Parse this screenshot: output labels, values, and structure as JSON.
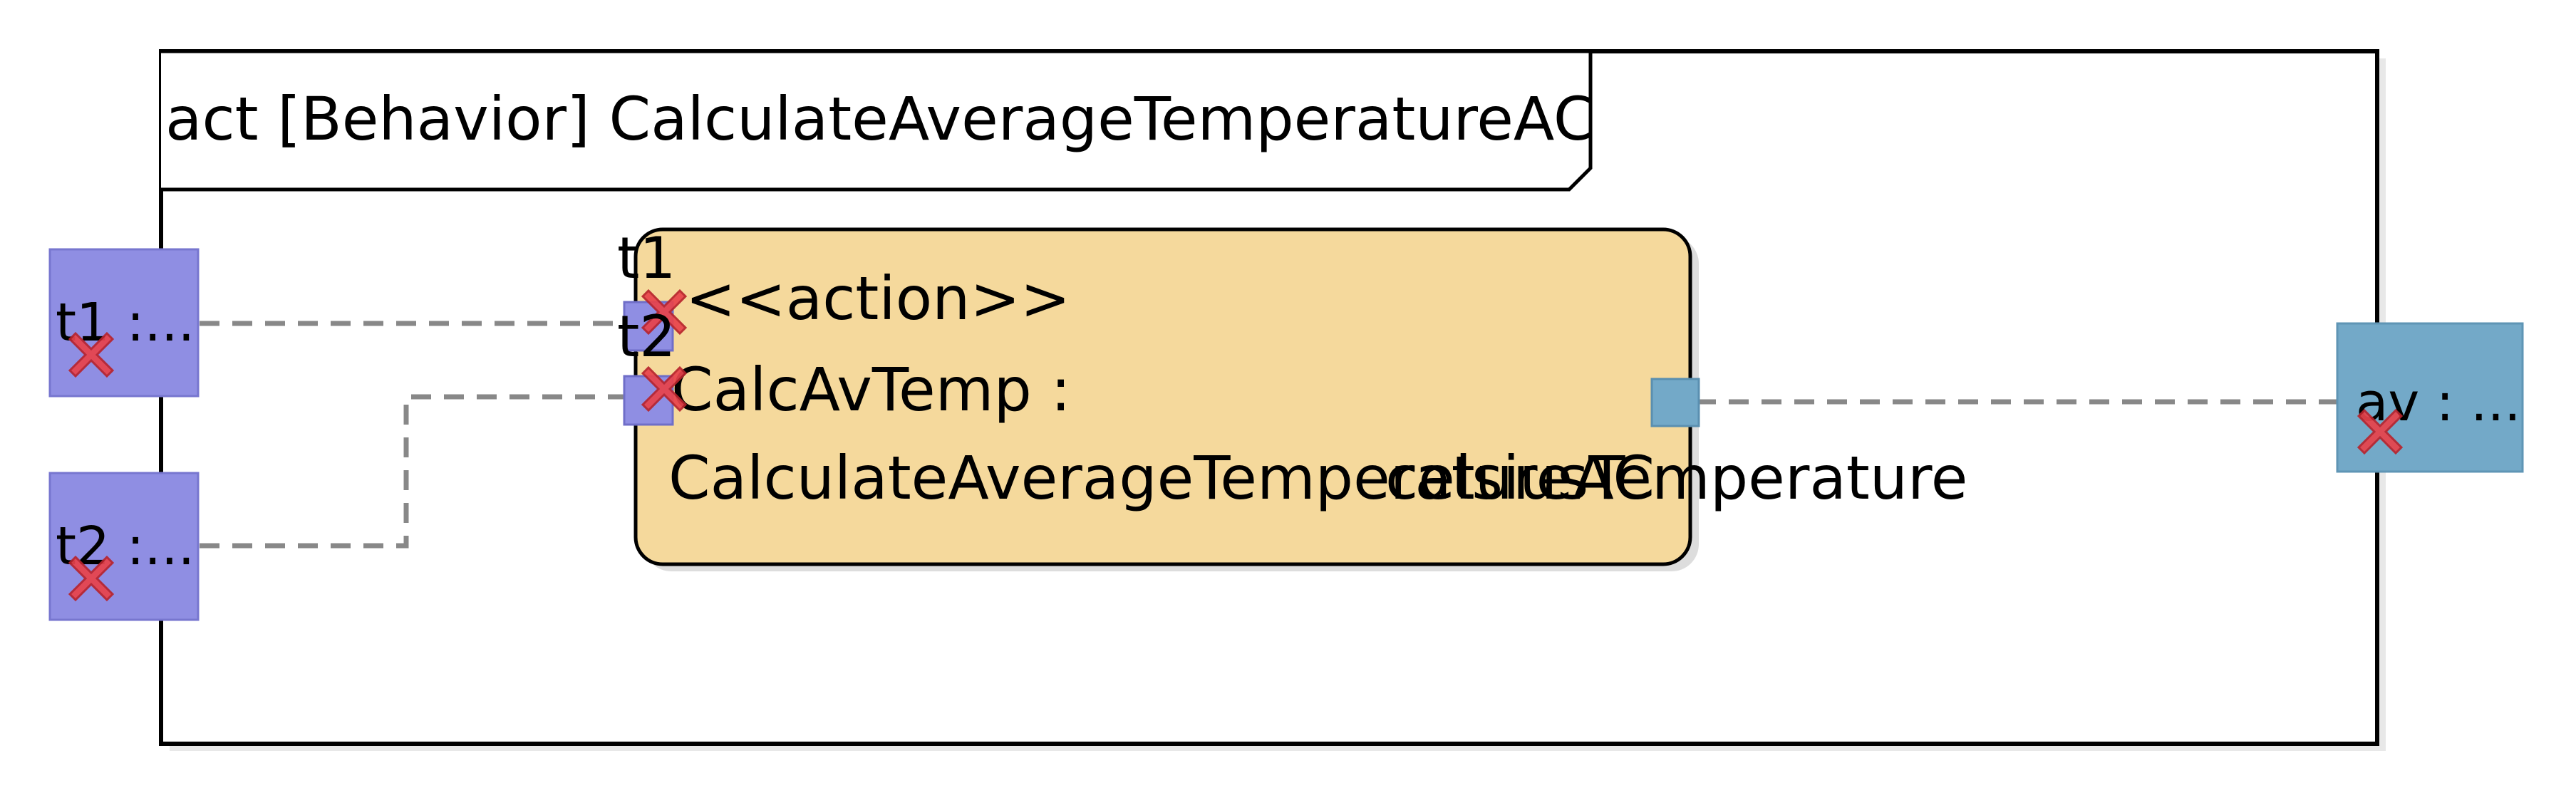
{
  "frame": {
    "title": "act [Behavior] CalculateAverageTemperatureAC"
  },
  "action": {
    "stereotype": "<<action>>",
    "name_line1": "CalcAvTemp :",
    "name_line2": "CalculateAverageTemperatureAC"
  },
  "pins": {
    "in1": "t1",
    "in2": "t2",
    "out": "celsiusTemperature"
  },
  "parameters": {
    "t1": "t1 :...",
    "t2": "t2 :...",
    "av": "av : ..."
  },
  "colors": {
    "input_param": "#8f8ee3",
    "output_param": "#73a9c8",
    "action_fill": "#f5d99c",
    "error_mark": "#e8434b"
  },
  "icons": {
    "error": "error-x-icon"
  }
}
